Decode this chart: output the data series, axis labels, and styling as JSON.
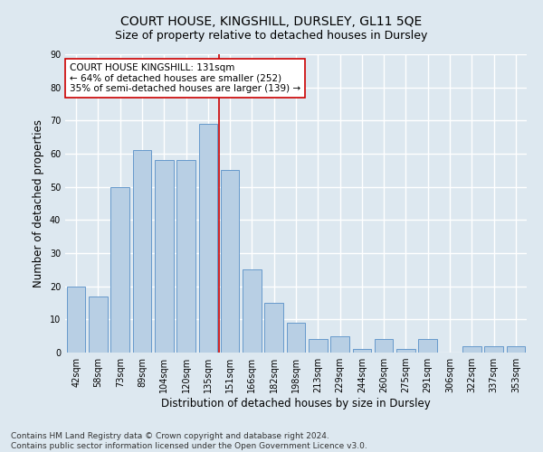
{
  "title": "COURT HOUSE, KINGSHILL, DURSLEY, GL11 5QE",
  "subtitle": "Size of property relative to detached houses in Dursley",
  "xlabel": "Distribution of detached houses by size in Dursley",
  "ylabel": "Number of detached properties",
  "categories": [
    "42sqm",
    "58sqm",
    "73sqm",
    "89sqm",
    "104sqm",
    "120sqm",
    "135sqm",
    "151sqm",
    "166sqm",
    "182sqm",
    "198sqm",
    "213sqm",
    "229sqm",
    "244sqm",
    "260sqm",
    "275sqm",
    "291sqm",
    "306sqm",
    "322sqm",
    "337sqm",
    "353sqm"
  ],
  "values": [
    20,
    17,
    50,
    61,
    58,
    58,
    69,
    55,
    25,
    15,
    9,
    4,
    5,
    1,
    4,
    1,
    4,
    0,
    2,
    2,
    2
  ],
  "bar_color": "#b8cfe4",
  "bar_edge_color": "#6699cc",
  "property_bin_index": 6,
  "property_line_color": "#cc0000",
  "annotation_text": "COURT HOUSE KINGSHILL: 131sqm\n← 64% of detached houses are smaller (252)\n35% of semi-detached houses are larger (139) →",
  "annotation_box_color": "#ffffff",
  "annotation_box_edge": "#cc0000",
  "ylim": [
    0,
    90
  ],
  "yticks": [
    0,
    10,
    20,
    30,
    40,
    50,
    60,
    70,
    80,
    90
  ],
  "footer": "Contains HM Land Registry data © Crown copyright and database right 2024.\nContains public sector information licensed under the Open Government Licence v3.0.",
  "background_color": "#dde8f0",
  "plot_bg_color": "#dde8f0",
  "grid_color": "#ffffff",
  "title_fontsize": 10,
  "subtitle_fontsize": 9,
  "axis_label_fontsize": 8.5,
  "tick_fontsize": 7,
  "annotation_fontsize": 7.5,
  "footer_fontsize": 6.5
}
